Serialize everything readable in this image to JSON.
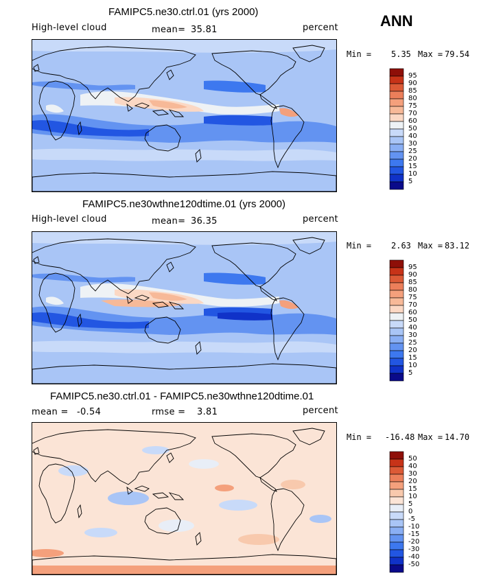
{
  "season": "ANN",
  "palette_high": [
    "#0a0a8a",
    "#1032c8",
    "#2256e2",
    "#3d78ef",
    "#6393f1",
    "#8aaff4",
    "#a9c5f6",
    "#c8daf9",
    "#eef2f5",
    "#fbd8c4",
    "#f7b998",
    "#f4a07c",
    "#ec7f5a",
    "#dc5a36",
    "#c73318",
    "#8e0f08"
  ],
  "palette_diff": [
    "#0a0a8a",
    "#1032c8",
    "#2256e2",
    "#3d78ef",
    "#6393f1",
    "#8aaff4",
    "#a9c5f6",
    "#c8daf9",
    "#e8eef7",
    "#fbe4d6",
    "#f8c9ad",
    "#f4a07c",
    "#ec7f5a",
    "#dc5a36",
    "#c73318",
    "#8e0f08"
  ],
  "chart_data": [
    {
      "type": "contour-map",
      "title": "FAMIPC5.ne30.ctrl.01 (yrs 2000)",
      "variable": "High-level cloud",
      "mean_label": "mean=",
      "mean": "35.81",
      "units": "percent",
      "min_label": "Min =",
      "min": "5.35",
      "max_label": "Max =",
      "max": "79.54",
      "colorbar_levels": [
        "95",
        "90",
        "85",
        "80",
        "75",
        "70",
        "60",
        "50",
        "40",
        "30",
        "25",
        "20",
        "15",
        "10",
        "5"
      ]
    },
    {
      "type": "contour-map",
      "title": "FAMIPC5.ne30wthne120dtime.01 (yrs 2000)",
      "variable": "High-level cloud",
      "mean_label": "mean=",
      "mean": "36.35",
      "units": "percent",
      "min_label": "Min =",
      "min": "2.63",
      "max_label": "Max =",
      "max": "83.12",
      "colorbar_levels": [
        "95",
        "90",
        "85",
        "80",
        "75",
        "70",
        "60",
        "50",
        "40",
        "30",
        "25",
        "20",
        "15",
        "10",
        "5"
      ]
    },
    {
      "type": "contour-map-difference",
      "title": "FAMIPC5.ne30.ctrl.01 - FAMIPC5.ne30wthne120dtime.01",
      "mean_label": "mean =",
      "mean": "-0.54",
      "rmse_label": "rmse =",
      "rmse": "3.81",
      "units": "percent",
      "min_label": "Min =",
      "min": "-16.48",
      "max_label": "Max =",
      "max": "14.70",
      "colorbar_levels": [
        "50",
        "40",
        "30",
        "20",
        "15",
        "10",
        "5",
        "0",
        "-5",
        "-10",
        "-15",
        "-20",
        "-30",
        "-40",
        "-50"
      ]
    }
  ]
}
